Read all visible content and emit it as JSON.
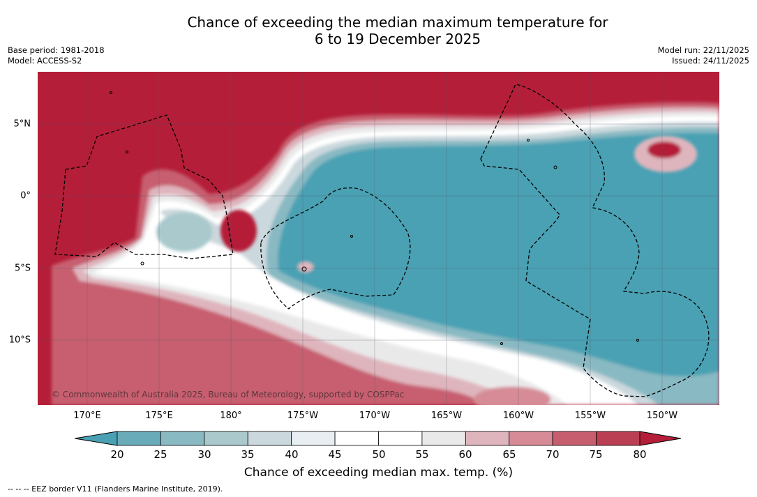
{
  "header": {
    "title_line1": "Chance of exceeding the median maximum temperature for",
    "title_line2": "6 to 19 December 2025",
    "base_period": "Base period: 1981-2018",
    "model": "Model: ACCESS-S2",
    "model_run": "Model run: 22/11/2025",
    "issued": "Issued: 24/11/2025"
  },
  "map": {
    "copyright": "© Commonwealth of Australia 2025, Bureau of Meteorology, supported by COSPPac",
    "lon_labels": [
      "170°E",
      "175°E",
      "180°",
      "175°W",
      "170°W",
      "165°W",
      "160°W",
      "155°W",
      "150°W"
    ],
    "lat_labels": [
      "5°N",
      "0°",
      "5°S",
      "10°S"
    ],
    "background_color": "#b41e38",
    "cool_color": "#4aa1b3"
  },
  "colorbar": {
    "ticks": [
      "20",
      "25",
      "30",
      "35",
      "40",
      "45",
      "50",
      "55",
      "60",
      "65",
      "70",
      "75",
      "80"
    ],
    "colors": [
      "#4aa1b3",
      "#6aabb9",
      "#89b9c3",
      "#a9c9cc",
      "#cbd8dd",
      "#e8eef1",
      "#ffffff",
      "#ffffff",
      "#e9e9ea",
      "#dfb5bd",
      "#d68b96",
      "#c75e6f",
      "#ba3f52",
      "#b41e38"
    ],
    "label": "Chance of exceeding median max. temp. (%)"
  },
  "footnote": "--  --  -- EEZ border V11 (Flanders Marine Institute, 2019)."
}
